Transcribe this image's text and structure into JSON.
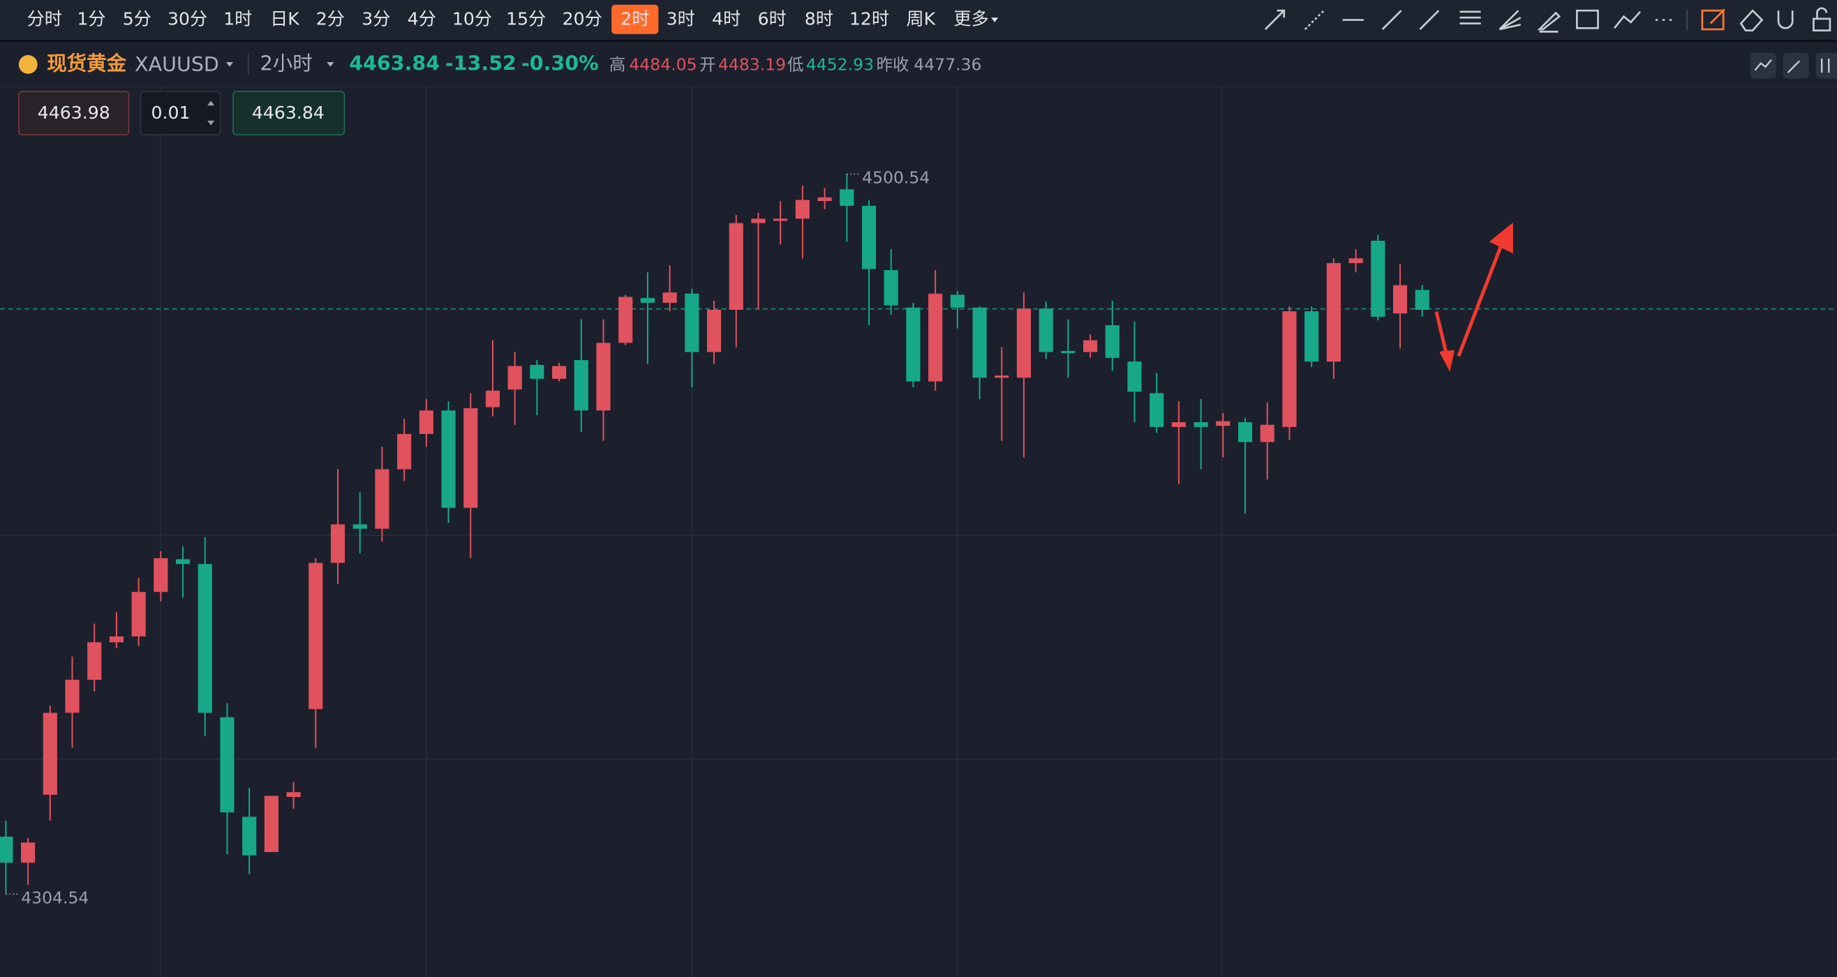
{
  "toolbar": {
    "periods": [
      "分时",
      "1分",
      "5分",
      "30分",
      "1时",
      "日K",
      "2分",
      "3分",
      "4分",
      "10分",
      "15分",
      "20分",
      "2时",
      "3时",
      "4时",
      "6时",
      "8时",
      "12时",
      "周K",
      "更多"
    ],
    "active": "2时"
  },
  "header": {
    "name": "现货黄金",
    "symbol": "XAUUSD",
    "period": "2小时",
    "price": "4463.84",
    "change": "-13.52",
    "change_pct": "-0.30%",
    "high_label": "高",
    "high": "4484.05",
    "open_label": "开",
    "open": "4483.19",
    "low_label": "低",
    "low": "4452.93",
    "prev_label": "昨收",
    "prev": "4477.36"
  },
  "order": {
    "sell": "4463.98",
    "qty": "0.01",
    "buy": "4463.84"
  },
  "chart_data": {
    "type": "candlestick",
    "up_color": "#e0525e",
    "down_color": "#17a88a",
    "ylim": [
      4282,
      4524
    ],
    "price_line": 4463.84,
    "open": [
      4320.2,
      4313.1,
      4331.6,
      4353.9,
      4362.9,
      4373.1,
      4374.7,
      4386.8,
      4395.7,
      4394.4,
      4352.7,
      4325.6,
      4316.0,
      4331.0,
      4354.9,
      4394.7,
      4405.2,
      4404.0,
      4420.2,
      4429.8,
      4436.2,
      4409.7,
      4437.1,
      4441.9,
      4448.6,
      4444.8,
      4449.9,
      4436.2,
      4454.6,
      4466.8,
      4465.5,
      4468.0,
      4452.1,
      4463.6,
      4487.2,
      4487.8,
      4488.4,
      4493.2,
      4496.4,
      4491.9,
      4474.4,
      4464.2,
      4444.1,
      4467.7,
      4464.2,
      4445.1,
      4445.1,
      4463.9,
      4452.4,
      4452.1,
      4459.4,
      4449.5,
      4440.9,
      4431.7,
      4433.0,
      4432.0,
      4433.0,
      4427.6,
      4431.7,
      4463.2,
      4449.5,
      4476.3,
      4482.4,
      4462.6,
      4469.0
    ],
    "high": [
      4324.6,
      4319.8,
      4355.8,
      4369.2,
      4378.2,
      4381.3,
      4390.6,
      4397.9,
      4399.2,
      4401.7,
      4356.5,
      4333.5,
      4331.3,
      4335.1,
      4396.0,
      4420.2,
      4413.9,
      4426.3,
      4433.9,
      4439.3,
      4438.7,
      4440.9,
      4455.3,
      4452.1,
      4449.9,
      4449.2,
      4461.0,
      4461.0,
      4467.7,
      4473.8,
      4475.7,
      4469.3,
      4466.1,
      4489.4,
      4490.0,
      4493.2,
      4497.4,
      4496.7,
      4500.54,
      4493.5,
      4480.1,
      4465.5,
      4474.4,
      4468.7,
      4464.5,
      4453.4,
      4468.3,
      4465.8,
      4461.0,
      4456.9,
      4466.1,
      4460.4,
      4446.4,
      4438.7,
      4439.3,
      4435.5,
      4434.2,
      4438.4,
      4464.5,
      4464.5,
      4477.6,
      4480.1,
      4484.0,
      4476.0,
      4470.3
    ],
    "low": [
      4304.54,
      4307.1,
      4324.6,
      4344.4,
      4359.7,
      4371.5,
      4372.1,
      4384.2,
      4385.2,
      4347.6,
      4315.4,
      4310.0,
      4316.0,
      4327.8,
      4344.4,
      4389.0,
      4397.3,
      4400.5,
      4417.0,
      4426.3,
      4405.6,
      4396.0,
      4434.6,
      4432.3,
      4434.9,
      4444.1,
      4430.4,
      4427.9,
      4454.0,
      4448.9,
      4463.2,
      4442.5,
      4448.9,
      4453.4,
      4463.6,
      4481.4,
      4477.6,
      4491.0,
      4482.1,
      4459.4,
      4462.3,
      4442.5,
      4441.6,
      4458.5,
      4439.3,
      4427.9,
      4423.4,
      4450.2,
      4445.1,
      4450.5,
      4447.0,
      4433.0,
      4430.1,
      4416.1,
      4420.2,
      4423.4,
      4408.1,
      4417.4,
      4428.2,
      4448.0,
      4444.8,
      4473.8,
      4460.7,
      4453.1,
      4461.7
    ],
    "close": [
      4313.1,
      4318.6,
      4353.9,
      4362.9,
      4373.1,
      4374.7,
      4386.8,
      4396.0,
      4394.4,
      4353.9,
      4326.8,
      4315.1,
      4331.3,
      4332.3,
      4394.7,
      4405.2,
      4404.0,
      4420.2,
      4429.8,
      4436.2,
      4409.7,
      4436.8,
      4441.6,
      4448.3,
      4444.8,
      4448.3,
      4436.2,
      4454.6,
      4467.1,
      4465.5,
      4468.3,
      4452.1,
      4463.6,
      4487.2,
      4488.4,
      4488.4,
      4493.5,
      4494.2,
      4491.9,
      4474.7,
      4464.8,
      4444.1,
      4468.0,
      4464.2,
      4445.1,
      4445.7,
      4463.9,
      4452.1,
      4451.8,
      4455.3,
      4450.5,
      4441.3,
      4431.7,
      4433.0,
      4431.7,
      4433.3,
      4427.6,
      4432.3,
      4463.2,
      4449.5,
      4476.3,
      4477.6,
      4461.7,
      4470.3,
      4463.6
    ]
  }
}
